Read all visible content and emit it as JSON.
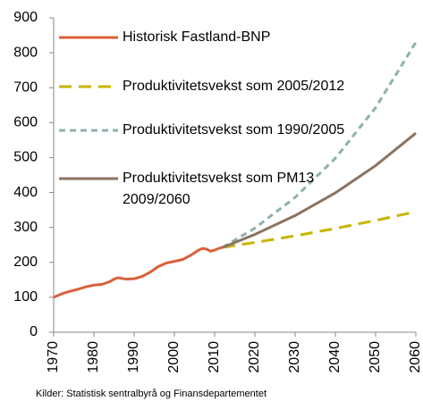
{
  "chart_data": {
    "type": "line",
    "source": "Kilder: Statistisk sentralbyrå og Finansdepartementet",
    "xlim": [
      1970,
      2060
    ],
    "xticks": [
      1970,
      1980,
      1990,
      2000,
      2010,
      2020,
      2030,
      2040,
      2050,
      2060
    ],
    "ylim": [
      0,
      900
    ],
    "yticks": [
      0,
      100,
      200,
      300,
      400,
      500,
      600,
      700,
      800,
      900
    ],
    "grid": false,
    "series": [
      {
        "name": "Historisk Fastland-BNP",
        "color": "#d9603b",
        "dash": "solid",
        "x": [
          1970,
          1972,
          1974,
          1976,
          1978,
          1980,
          1982,
          1984,
          1985,
          1986,
          1988,
          1990,
          1992,
          1994,
          1996,
          1998,
          2000,
          2002,
          2004,
          2006,
          2007,
          2008,
          2009,
          2010,
          2011,
          2012
        ],
        "values": [
          100,
          110,
          117,
          123,
          130,
          135,
          137,
          145,
          152,
          156,
          152,
          153,
          160,
          172,
          188,
          198,
          203,
          208,
          220,
          235,
          240,
          238,
          232,
          235,
          240,
          243
        ]
      },
      {
        "name": "Produktivitetsvekst som 2005/2012",
        "color": "#c8b400",
        "dash": "long",
        "x": [
          2012,
          2020,
          2030,
          2040,
          2050,
          2060
        ],
        "values": [
          243,
          257,
          276,
          297,
          320,
          345
        ]
      },
      {
        "name": "Produktivitetsvekst som 1990/2005",
        "color": "#8fb0b0",
        "dash": "short",
        "x": [
          2012,
          2020,
          2030,
          2040,
          2050,
          2060
        ],
        "values": [
          243,
          298,
          386,
          498,
          643,
          830
        ]
      },
      {
        "name": "Produktivitetsvekst som PM13 2009/2060",
        "color": "#8b7362",
        "dash": "solid",
        "x": [
          2012,
          2020,
          2030,
          2040,
          2050,
          2060
        ],
        "values": [
          243,
          280,
          334,
          399,
          477,
          570
        ]
      }
    ]
  }
}
